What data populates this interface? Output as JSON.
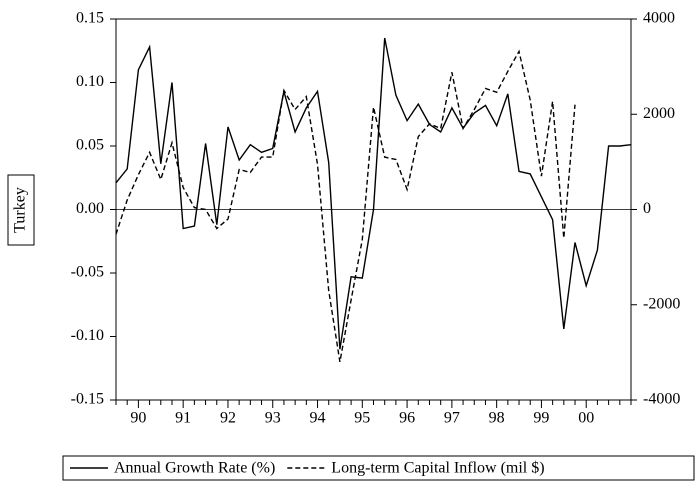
{
  "chart_data": {
    "type": "line",
    "y_label": "Turkey",
    "categories": [
      null,
      null,
      "90",
      null,
      null,
      null,
      "91",
      null,
      null,
      null,
      "92",
      null,
      null,
      null,
      "93",
      null,
      null,
      null,
      "94",
      null,
      null,
      null,
      "95",
      null,
      null,
      null,
      "96",
      null,
      null,
      null,
      "97",
      null,
      null,
      null,
      "98",
      null,
      null,
      null,
      "99",
      null,
      null,
      null,
      "00",
      null,
      null,
      null,
      null
    ],
    "series": [
      {
        "name": "Annual Growth Rate (%)",
        "color": "#000000",
        "dash": "solid",
        "axis": "y",
        "values": [
          0.021,
          0.032,
          0.11,
          0.128,
          0.036,
          0.1,
          -0.015,
          -0.013,
          0.052,
          -0.012,
          0.065,
          0.039,
          0.051,
          0.045,
          0.048,
          0.093,
          0.061,
          0.08,
          0.093,
          0.037,
          -0.11,
          -0.053,
          -0.054,
          0.0,
          0.135,
          0.09,
          0.07,
          0.083,
          0.067,
          0.061,
          0.08,
          0.064,
          0.076,
          0.082,
          0.066,
          0.091,
          0.03,
          0.028,
          0.01,
          -0.008,
          -0.094,
          -0.026,
          -0.06,
          -0.032,
          0.05,
          0.05,
          0.051
        ]
      },
      {
        "name": "Long-term Capital Inflow (mil $)",
        "color": "#000000",
        "dash": "dashed",
        "axis": "y2",
        "values": [
          -520,
          200,
          730,
          1200,
          630,
          1400,
          460,
          40,
          0,
          -400,
          -200,
          840,
          780,
          1100,
          1100,
          2500,
          2100,
          2370,
          950,
          -1700,
          -3200,
          -1900,
          -630,
          2150,
          1100,
          1050,
          420,
          1530,
          1800,
          1700,
          2880,
          1700,
          2100,
          2540,
          2460,
          2900,
          3320,
          2300,
          700,
          2270,
          -600,
          2200,
          null,
          null,
          null,
          null,
          null
        ]
      }
    ],
    "ylim": [
      -0.15,
      0.15
    ],
    "yticks": [
      -0.15,
      {
        "value": -0.1,
        "label": "-0.10"
      },
      -0.05,
      {
        "value": 0,
        "label": "0.00"
      },
      0.05,
      {
        "value": 0.1,
        "label": "0.10"
      },
      0.15
    ],
    "y2lim": [
      -4000,
      4000
    ],
    "y2ticks": [
      -4000,
      -2000,
      0,
      2000,
      4000
    ],
    "zero_line": true,
    "legend": "bottom"
  }
}
